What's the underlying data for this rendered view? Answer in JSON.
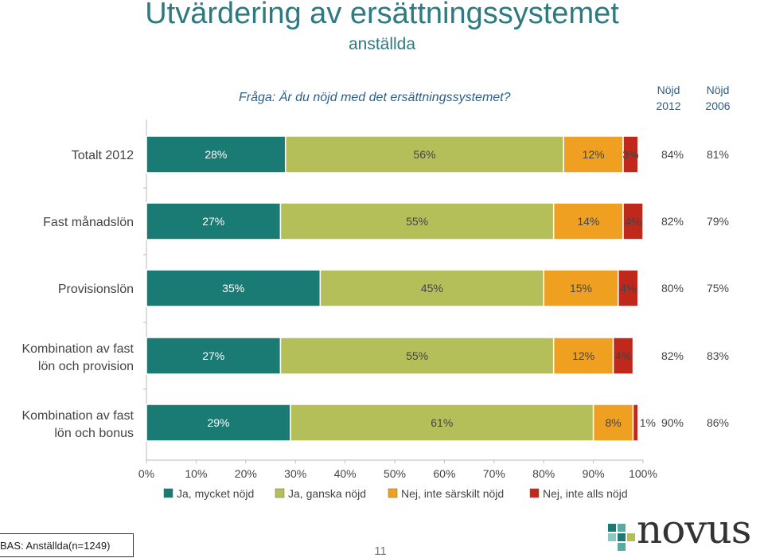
{
  "header": {
    "title": "Utvärdering av ersättningssystemet",
    "subtitle": "anställda",
    "question": "Fråga: Är du nöjd med det ersättningssystemet?",
    "col2012": [
      "Nöjd",
      "2012"
    ],
    "col2006": [
      "Nöjd",
      "2006"
    ]
  },
  "footer": {
    "bas": "BAS: Anställda(n=1249)",
    "page": "11",
    "logo": "novus"
  },
  "colors": {
    "ja_mycket": "#1a7a74",
    "ja_ganska": "#b5bf5a",
    "nej_inte_sarskilt": "#f0a020",
    "nej_inte_alls": "#c0281c",
    "title": "#2d7a80"
  },
  "chart_data": {
    "type": "bar",
    "orientation": "horizontal",
    "stacked": true,
    "categories": [
      [
        "Totalt 2012"
      ],
      [
        "Fast månadslön"
      ],
      [
        "Provisionslön"
      ],
      [
        "Kombination av fast",
        "lön och provision"
      ],
      [
        "Kombination av fast",
        "lön och bonus"
      ]
    ],
    "series": [
      {
        "name": "Ja, mycket nöjd",
        "values": [
          28,
          27,
          35,
          27,
          29
        ],
        "labels": [
          "28%",
          "27%",
          "35%",
          "27%",
          "29%"
        ]
      },
      {
        "name": "Ja, ganska nöjd",
        "values": [
          56,
          55,
          45,
          55,
          61
        ],
        "labels": [
          "56%",
          "55%",
          "45%",
          "55%",
          "61%"
        ]
      },
      {
        "name": "Nej, inte särskilt nöjd",
        "values": [
          12,
          14,
          15,
          12,
          8
        ],
        "labels": [
          "12%",
          "14%",
          "15%",
          "12%",
          "8%"
        ]
      },
      {
        "name": "Nej, inte alls nöjd",
        "values": [
          3,
          4,
          4,
          4,
          1
        ],
        "labels": [
          "3%",
          "4%",
          "4%",
          "4%",
          "1%"
        ]
      }
    ],
    "nojd_2012": [
      "84%",
      "82%",
      "80%",
      "82%",
      "90%"
    ],
    "nojd_2006": [
      "81%",
      "79%",
      "75%",
      "83%",
      "86%"
    ],
    "xlim": [
      0,
      100
    ],
    "xticks": [
      "0%",
      "10%",
      "20%",
      "30%",
      "40%",
      "50%",
      "60%",
      "70%",
      "80%",
      "90%",
      "100%"
    ],
    "legend_position": "bottom"
  }
}
